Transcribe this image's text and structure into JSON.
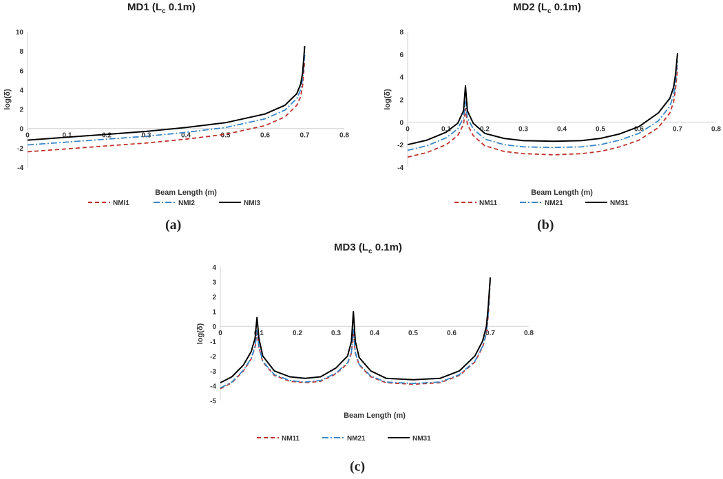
{
  "colors": {
    "NMI1": "#c0302b",
    "NMI2": "#3a86c8",
    "NMI3": "#000000"
  },
  "panel_labels": [
    "(a)",
    "(b)",
    "(c)"
  ],
  "chart_data": [
    {
      "type": "line",
      "title_main": "MD1 (L",
      "title_sub": "c",
      "title_tail": " 0.1m)",
      "xlabel": "Beam Length (m)",
      "ylabel": "log(δ)",
      "xlim": [
        0,
        0.8
      ],
      "ylim": [
        -4,
        10
      ],
      "xticks": [
        0,
        0.1,
        0.2,
        0.3,
        0.4,
        0.5,
        0.6,
        0.7,
        0.8
      ],
      "xtick_labels": [
        "0",
        "0.1",
        "0.2",
        "0.3",
        "0.4",
        "0.5",
        "0.6",
        "0.7",
        "0.8"
      ],
      "yticks": [
        -4,
        -2,
        0,
        2,
        4,
        6,
        8,
        10
      ],
      "ytick_labels": [
        "-4",
        "-2",
        "0",
        "2",
        "4",
        "6",
        "8",
        "10"
      ],
      "grid": false,
      "legend": "bottom",
      "series": [
        {
          "name": "NMI1",
          "dash": "dash",
          "x": [
            0,
            0.1,
            0.2,
            0.3,
            0.4,
            0.5,
            0.6,
            0.65,
            0.68,
            0.69,
            0.695,
            0.7
          ],
          "y": [
            -2.4,
            -2.1,
            -1.8,
            -1.5,
            -1.1,
            -0.6,
            0.3,
            1.2,
            2.4,
            3.3,
            4.5,
            7.0
          ]
        },
        {
          "name": "NMI2",
          "dash": "dashdot",
          "x": [
            0,
            0.1,
            0.2,
            0.3,
            0.4,
            0.5,
            0.6,
            0.65,
            0.68,
            0.69,
            0.695,
            0.7
          ],
          "y": [
            -1.7,
            -1.4,
            -1.1,
            -0.8,
            -0.4,
            0.1,
            1.0,
            1.9,
            3.1,
            4.0,
            5.2,
            7.6
          ]
        },
        {
          "name": "NMI3",
          "dash": "solid",
          "x": [
            0,
            0.1,
            0.2,
            0.3,
            0.4,
            0.5,
            0.6,
            0.65,
            0.68,
            0.69,
            0.695,
            0.7
          ],
          "y": [
            -1.2,
            -0.9,
            -0.6,
            -0.3,
            0.1,
            0.6,
            1.5,
            2.4,
            3.6,
            4.6,
            5.8,
            8.5
          ]
        }
      ]
    },
    {
      "type": "line",
      "title_main": "MD2 (L",
      "title_sub": "c",
      "title_tail": " 0.1m)",
      "xlabel": "Beam Length (m)",
      "ylabel": "log(δ)",
      "xlim": [
        0,
        0.8
      ],
      "ylim": [
        -4,
        8
      ],
      "xticks": [
        0,
        0.1,
        0.2,
        0.3,
        0.4,
        0.5,
        0.6,
        0.7,
        0.8
      ],
      "xtick_labels": [
        "0",
        "0.1",
        "0.2",
        "0.3",
        "0.4",
        "0.5",
        "0.6",
        "0.7",
        "0.8"
      ],
      "yticks": [
        -4,
        -2,
        0,
        2,
        4,
        6,
        8
      ],
      "ytick_labels": [
        "-4",
        "-2",
        "0",
        "2",
        "4",
        "6",
        "8"
      ],
      "grid": false,
      "legend": "bottom",
      "series": [
        {
          "name": "NM11",
          "dash": "dash",
          "x": [
            0,
            0.05,
            0.1,
            0.13,
            0.145,
            0.15,
            0.155,
            0.17,
            0.2,
            0.25,
            0.3,
            0.38,
            0.45,
            0.5,
            0.55,
            0.6,
            0.65,
            0.68,
            0.69,
            0.695,
            0.7
          ],
          "y": [
            -3.1,
            -2.7,
            -2.0,
            -1.2,
            -0.2,
            1.2,
            -0.2,
            -1.2,
            -2.1,
            -2.6,
            -2.8,
            -2.9,
            -2.8,
            -2.6,
            -2.2,
            -1.6,
            -0.5,
            0.8,
            1.8,
            3.0,
            4.8
          ]
        },
        {
          "name": "NM21",
          "dash": "dashdot",
          "x": [
            0,
            0.05,
            0.1,
            0.13,
            0.145,
            0.15,
            0.155,
            0.17,
            0.2,
            0.25,
            0.3,
            0.38,
            0.45,
            0.5,
            0.55,
            0.6,
            0.65,
            0.68,
            0.69,
            0.695,
            0.7
          ],
          "y": [
            -2.5,
            -2.1,
            -1.4,
            -0.6,
            0.4,
            1.8,
            0.4,
            -0.6,
            -1.5,
            -2.0,
            -2.2,
            -2.25,
            -2.2,
            -2.0,
            -1.6,
            -1.0,
            0.1,
            1.4,
            2.4,
            3.6,
            5.4
          ]
        },
        {
          "name": "NM31",
          "dash": "solid",
          "x": [
            0,
            0.05,
            0.1,
            0.13,
            0.145,
            0.15,
            0.155,
            0.17,
            0.2,
            0.25,
            0.3,
            0.38,
            0.45,
            0.5,
            0.55,
            0.6,
            0.65,
            0.68,
            0.69,
            0.695,
            0.7
          ],
          "y": [
            -2.0,
            -1.6,
            -0.9,
            -0.1,
            1.0,
            3.2,
            1.0,
            -0.1,
            -1.0,
            -1.45,
            -1.65,
            -1.7,
            -1.65,
            -1.45,
            -1.05,
            -0.4,
            0.8,
            2.1,
            3.1,
            4.3,
            6.1
          ]
        }
      ]
    },
    {
      "type": "line",
      "title_main": "MD3 (L",
      "title_sub": "c",
      "title_tail": " 0.1m)",
      "xlabel": "Beam Length (m)",
      "ylabel": "log(δ)",
      "xlim": [
        0,
        0.8
      ],
      "ylim": [
        -5,
        4
      ],
      "xticks": [
        0,
        0.1,
        0.2,
        0.3,
        0.4,
        0.5,
        0.6,
        0.7,
        0.8
      ],
      "xtick_labels": [
        "0",
        "0.1",
        "0.2",
        "0.3",
        "0.4",
        "0.5",
        "0.6",
        "0.7",
        "0.8"
      ],
      "yticks": [
        -5,
        -4,
        -3,
        -2,
        -1,
        0,
        1,
        2,
        3,
        4
      ],
      "ytick_labels": [
        "-5",
        "-4",
        "-3",
        "-2",
        "-1",
        "0",
        "1",
        "2",
        "3",
        "4"
      ],
      "grid": false,
      "legend": "bottom",
      "series": [
        {
          "name": "NM11",
          "dash": "dash",
          "x": [
            0,
            0.03,
            0.06,
            0.08,
            0.09,
            0.095,
            0.1,
            0.11,
            0.14,
            0.18,
            0.22,
            0.26,
            0.3,
            0.33,
            0.34,
            0.345,
            0.35,
            0.36,
            0.39,
            0.43,
            0.5,
            0.57,
            0.62,
            0.66,
            0.68,
            0.69,
            0.695,
            0.7
          ],
          "y": [
            -4.2,
            -3.8,
            -3.0,
            -2.2,
            -1.4,
            -0.4,
            -1.4,
            -2.4,
            -3.3,
            -3.7,
            -3.8,
            -3.7,
            -3.2,
            -2.5,
            -1.8,
            -0.3,
            -1.8,
            -2.6,
            -3.4,
            -3.8,
            -3.9,
            -3.8,
            -3.3,
            -2.4,
            -1.4,
            -0.5,
            0.8,
            3.1
          ]
        },
        {
          "name": "NM21",
          "dash": "dashdot",
          "x": [
            0,
            0.03,
            0.06,
            0.08,
            0.09,
            0.095,
            0.1,
            0.11,
            0.14,
            0.18,
            0.22,
            0.26,
            0.3,
            0.33,
            0.34,
            0.345,
            0.35,
            0.36,
            0.39,
            0.43,
            0.5,
            0.57,
            0.62,
            0.66,
            0.68,
            0.69,
            0.695,
            0.7
          ],
          "y": [
            -4.15,
            -3.75,
            -2.95,
            -2.15,
            -1.35,
            -0.3,
            -1.35,
            -2.35,
            -3.25,
            -3.65,
            -3.75,
            -3.65,
            -3.15,
            -2.45,
            -1.75,
            -0.2,
            -1.75,
            -2.55,
            -3.35,
            -3.75,
            -3.85,
            -3.75,
            -3.25,
            -2.35,
            -1.35,
            -0.45,
            0.9,
            3.2
          ]
        },
        {
          "name": "NM31",
          "dash": "solid",
          "x": [
            0,
            0.03,
            0.06,
            0.08,
            0.09,
            0.095,
            0.1,
            0.11,
            0.14,
            0.18,
            0.22,
            0.26,
            0.3,
            0.33,
            0.34,
            0.345,
            0.35,
            0.36,
            0.39,
            0.43,
            0.5,
            0.57,
            0.62,
            0.66,
            0.68,
            0.69,
            0.695,
            0.7
          ],
          "y": [
            -3.8,
            -3.4,
            -2.6,
            -1.7,
            -0.8,
            0.6,
            -0.8,
            -2.0,
            -3.0,
            -3.4,
            -3.5,
            -3.4,
            -2.8,
            -2.0,
            -1.0,
            1.0,
            -1.0,
            -2.1,
            -3.0,
            -3.5,
            -3.6,
            -3.5,
            -3.0,
            -2.0,
            -1.0,
            0.0,
            1.4,
            3.3
          ]
        }
      ]
    }
  ]
}
